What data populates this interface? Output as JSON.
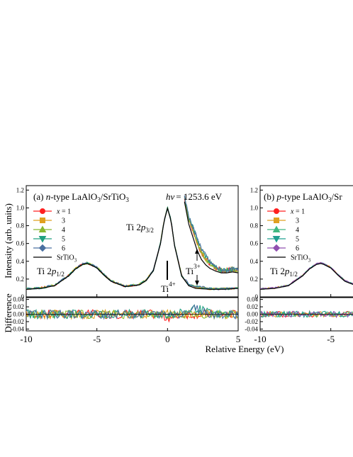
{
  "figure": {
    "xlabel": "Relative Energy (eV)",
    "ylabel_top": "Intensity (arb. units)",
    "ylabel_bottom": "Difference"
  },
  "chart_data": [
    {
      "type": "line",
      "panel": "a",
      "title_prefix": "(a) ",
      "title_italic": "n",
      "title_suffix": "-type LaAlO",
      "title_sub": "3",
      "title_tail": "/SrTiO",
      "title_tail_sub": "3",
      "photon_energy_prefix": "hν",
      "photon_energy_value": "= 1253.6 eV",
      "xlim": [
        -10,
        5
      ],
      "ylim": [
        0,
        1.25
      ],
      "xticks": [
        -10,
        -5,
        0,
        5
      ],
      "xtick_labels": [
        "-10",
        "-5",
        "0",
        "5"
      ],
      "yticks": [
        0.2,
        0.4,
        0.6,
        0.8,
        1.0,
        1.2
      ],
      "ytick_labels": [
        "0.2",
        "0.4",
        "0.6",
        "0.8",
        "1.0",
        "1.2"
      ],
      "diff_ylim": [
        -0.045,
        0.045
      ],
      "diff_yticks": [
        -0.04,
        -0.02,
        0.0,
        0.02,
        0.04
      ],
      "diff_ytick_labels": [
        "-0.04",
        "-0.02",
        "0.00",
        "0.02",
        "0.04"
      ],
      "annotations": {
        "ti2p32": "Ti 2p3/2",
        "ti2p12": "Ti 2p1/2",
        "ti4": "Ti4+",
        "ti3": "Ti3+"
      },
      "legend_position": "left",
      "series": [
        {
          "name": "x = 1",
          "color": "#ff2020",
          "marker": "circle"
        },
        {
          "name": "3",
          "color": "#e0a020",
          "marker": "square"
        },
        {
          "name": "4",
          "color": "#88b830",
          "marker": "triangle-up"
        },
        {
          "name": "5",
          "color": "#20a080",
          "marker": "triangle-down"
        },
        {
          "name": "6",
          "color": "#4a70a0",
          "marker": "diamond"
        },
        {
          "name": "SrTiO3",
          "color": "#000000",
          "marker": "none"
        }
      ],
      "x": [
        -10,
        -9,
        -8,
        -7,
        -6.5,
        -6,
        -5.7,
        -5.5,
        -5,
        -4.5,
        -4,
        -3,
        -2,
        -1.5,
        -1,
        -0.5,
        -0.25,
        0,
        0.25,
        0.5,
        1,
        1.5,
        2,
        3,
        4,
        5
      ],
      "reference_values": [
        0.09,
        0.1,
        0.13,
        0.24,
        0.32,
        0.37,
        0.38,
        0.37,
        0.33,
        0.25,
        0.18,
        0.12,
        0.14,
        0.19,
        0.3,
        0.6,
        0.85,
        1.0,
        0.86,
        0.58,
        0.24,
        0.13,
        0.1,
        0.09,
        0.09,
        0.1
      ],
      "inset_curve": {
        "description": "x10 magnification near Ti3+ region",
        "x": [
          1.2,
          1.5,
          1.8,
          2.1,
          2.4,
          2.7,
          3.0,
          3.4,
          3.8,
          4.2,
          4.6,
          5.0
        ],
        "y": [
          1.1,
          0.85,
          0.7,
          0.55,
          0.45,
          0.39,
          0.35,
          0.32,
          0.3,
          0.3,
          0.31,
          0.3
        ]
      }
    },
    {
      "type": "line",
      "panel": "b",
      "title_prefix": "(b) ",
      "title_italic": "p",
      "title_suffix": "-type LaAlO",
      "title_sub": "3",
      "title_tail": "/Sr",
      "title_tail_sub": "",
      "xlim": [
        -10,
        5
      ],
      "ylim": [
        0,
        1.25
      ],
      "xticks": [
        -10,
        -5
      ],
      "xtick_labels": [
        "-10",
        "-5"
      ],
      "yticks": [
        0.2,
        0.4,
        0.6,
        0.8,
        1.0,
        1.2
      ],
      "ytick_labels": [
        "0.2",
        "0.4",
        "0.6",
        "0.8",
        "1.0",
        "1.2"
      ],
      "diff_ylim": [
        -0.045,
        0.045
      ],
      "diff_yticks": [
        -0.04,
        -0.02,
        0.0,
        0.02,
        0.04
      ],
      "diff_ytick_labels": [
        "-0.04",
        "-0.02",
        "0.00",
        "0.02",
        "0.04"
      ],
      "annotations": {
        "ti2p12": "Ti 2p1/2"
      },
      "legend_position": "left",
      "series": [
        {
          "name": "x = 1",
          "color": "#ff2020",
          "marker": "circle"
        },
        {
          "name": "3",
          "color": "#e0a020",
          "marker": "square"
        },
        {
          "name": "4",
          "color": "#40b880",
          "marker": "triangle-up"
        },
        {
          "name": "5",
          "color": "#20a090",
          "marker": "triangle-down"
        },
        {
          "name": "6",
          "color": "#9050b0",
          "marker": "diamond"
        },
        {
          "name": "SrTiO3",
          "color": "#000000",
          "marker": "none"
        }
      ]
    }
  ]
}
